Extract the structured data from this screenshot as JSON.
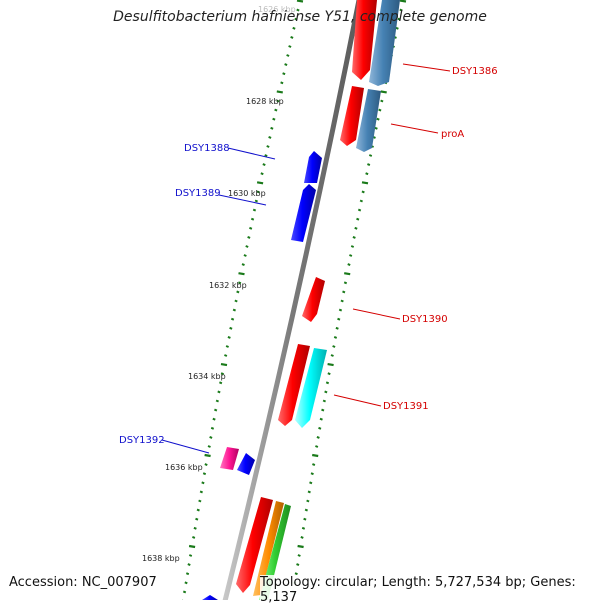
{
  "title": "Desulfitobacterium hafniense Y51, complete genome",
  "accession": "Accession: NC_007907",
  "summary": "Topology: circular; Length: 5,727,534 bp; Genes: 5,137",
  "ticks": [
    "1626 kbp",
    "1628 kbp",
    "1630 kbp",
    "1632 kbp",
    "1634 kbp",
    "1636 kbp",
    "1638 kbp"
  ],
  "gene_labels": {
    "DSY1386": "DSY1386",
    "proA": "proA",
    "DSY1388": "DSY1388",
    "DSY1389": "DSY1389",
    "DSY1390": "DSY1390",
    "DSY1391": "DSY1391",
    "DSY1392": "DSY1392"
  },
  "colors": {
    "forward_label": "#d40000",
    "reverse_label": "#1010cc",
    "backbone": "#8c8c8c",
    "tick_green": "#1a7a1a",
    "gene_red": "#ff0000",
    "gene_blue": "#0000ff",
    "gene_steelblue": "#4682b4",
    "gene_cyan": "#00ffff",
    "gene_magenta": "#ff1493",
    "gene_orange": "#ff8c00",
    "gene_green": "#32cd32"
  }
}
